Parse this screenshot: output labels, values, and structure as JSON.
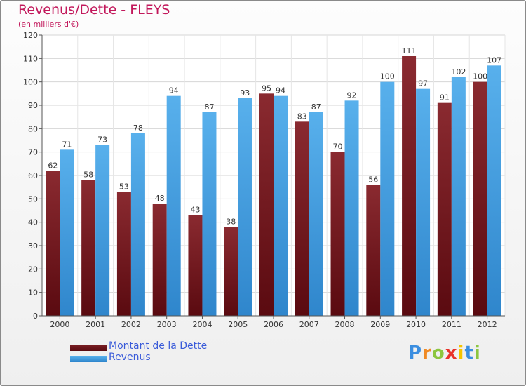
{
  "header": {
    "title": "Revenus/Dette - FLEYS",
    "subtitle": "(en milliers d'€)"
  },
  "logo": {
    "text": "Proxiti",
    "letters": [
      "P",
      "r",
      "o",
      "x",
      "i",
      "t",
      "i"
    ],
    "colors": [
      "#3b8ee0",
      "#f08a24",
      "#8cc63f",
      "#e8322a",
      "#f5c400",
      "#3b8ee0",
      "#8cc63f"
    ]
  },
  "chart_data": {
    "type": "bar",
    "title": "Revenus/Dette - FLEYS",
    "subtitle": "(en milliers d'€)",
    "categories": [
      "2000",
      "2001",
      "2002",
      "2003",
      "2004",
      "2005",
      "2006",
      "2007",
      "2008",
      "2009",
      "2010",
      "2011",
      "2012"
    ],
    "series": [
      {
        "name": "Montant de la Dette",
        "values": [
          62,
          58,
          53,
          48,
          43,
          38,
          95,
          83,
          70,
          56,
          111,
          91,
          100
        ],
        "color": "#7a1f24"
      },
      {
        "name": "Revenus",
        "values": [
          71,
          73,
          78,
          94,
          87,
          93,
          94,
          87,
          92,
          100,
          97,
          102,
          107
        ],
        "color": "#4ba3e3"
      }
    ],
    "ylim": [
      0,
      120
    ],
    "yticks": [
      0,
      10,
      20,
      30,
      40,
      50,
      60,
      70,
      80,
      90,
      100,
      110,
      120
    ],
    "grid": true,
    "legend_position": "bottom-left",
    "xlabel": "",
    "ylabel": ""
  }
}
